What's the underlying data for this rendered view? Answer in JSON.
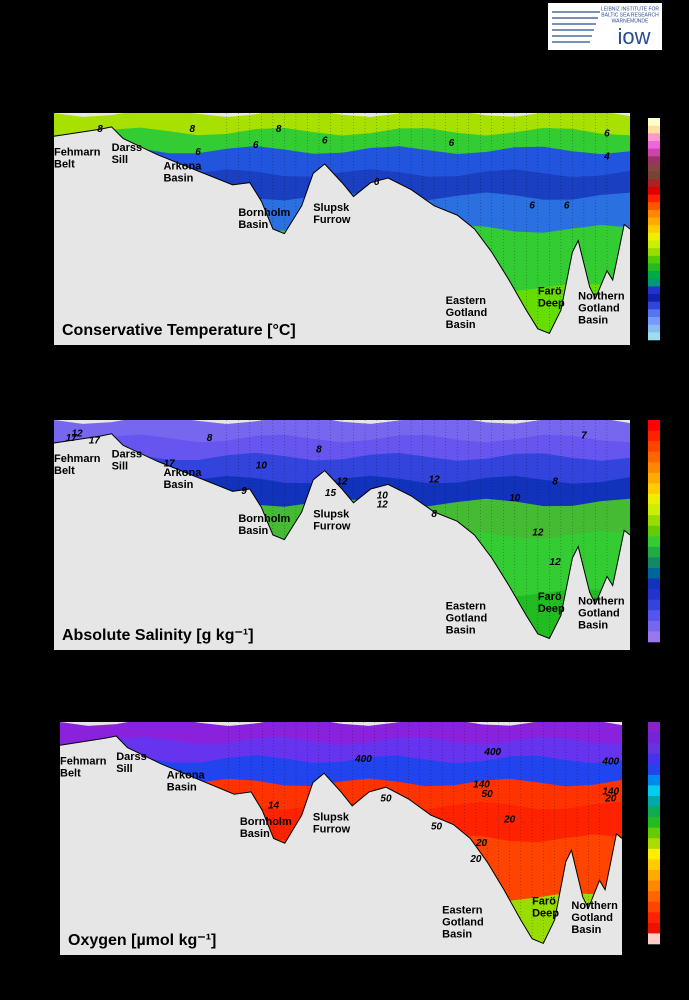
{
  "logo": {
    "lines": [
      "LEIBNIZ INSTITUTE FOR",
      "BALTIC SEA RESEARCH",
      "WARNEMÜNDE"
    ],
    "mark": "iow"
  },
  "chart_data": [
    {
      "type": "section",
      "title": "Conservative Temperature [°C]",
      "basin_labels": [
        [
          "Fehmarn",
          "Belt"
        ],
        [
          "Darss",
          "Sill"
        ],
        [
          "Arkona",
          "Basin"
        ],
        [
          "Bornholm",
          "Basin"
        ],
        [
          "Slupsk",
          "Furrow"
        ],
        [
          "Eastern",
          "Gotland",
          "Basin"
        ],
        [
          "Farö",
          "Deep"
        ],
        [
          "Northern",
          "Gotland",
          "Basin"
        ]
      ],
      "contour_labels": [
        8,
        8,
        8,
        6,
        6,
        6,
        6,
        6,
        4,
        6,
        6,
        6
      ],
      "layer_colors": [
        "#a8e000",
        "#33cc33",
        "#2255dd",
        "#1a3fc0",
        "#2a70e0",
        "#33cc33",
        "#66dd00"
      ],
      "colorbar": [
        "#ffffcc",
        "#ffe0a0",
        "#ff99cc",
        "#ee66dd",
        "#cc44aa",
        "#993366",
        "#884444",
        "#774433",
        "#aa2222",
        "#dd0000",
        "#ff2200",
        "#ff5500",
        "#ff8800",
        "#ffaa00",
        "#ffcc00",
        "#eeee00",
        "#ccee00",
        "#99dd00",
        "#55cc00",
        "#22bb22",
        "#00aa44",
        "#009977",
        "#2233cc",
        "#1122aa",
        "#3344dd",
        "#5577ee",
        "#7799ff",
        "#88bbee",
        "#99ddee"
      ]
    },
    {
      "type": "section",
      "title": "Absolute Salinity [g kg⁻¹]",
      "basin_labels": [
        [
          "Fehmarn",
          "Belt"
        ],
        [
          "Darss",
          "Sill"
        ],
        [
          "Arkona",
          "Basin"
        ],
        [
          "Bornholm",
          "Basin"
        ],
        [
          "Slupsk",
          "Furrow"
        ],
        [
          "Eastern",
          "Gotland",
          "Basin"
        ],
        [
          "Farö",
          "Deep"
        ],
        [
          "Northern",
          "Gotland",
          "Basin"
        ]
      ],
      "contour_labels": [
        12,
        17,
        8,
        17,
        10,
        17,
        9,
        8,
        12,
        15,
        10,
        12,
        8,
        12,
        10,
        8,
        12,
        12,
        7
      ],
      "layer_colors": [
        "#7766ee",
        "#6655ee",
        "#3344dd",
        "#1133bb",
        "#44bb33",
        "#33cc33",
        "#22bb22"
      ],
      "colorbar": [
        "#ff0000",
        "#ff2200",
        "#ff4400",
        "#ff6600",
        "#ff8800",
        "#ffaa00",
        "#ffcc00",
        "#eeee00",
        "#ccee00",
        "#99dd00",
        "#66cc00",
        "#33cc33",
        "#22aa44",
        "#118866",
        "#006699",
        "#1133bb",
        "#2233cc",
        "#3344dd",
        "#5555ee",
        "#7766ee",
        "#9977ee"
      ]
    },
    {
      "type": "section",
      "title": "Oxygen [µmol kg⁻¹]",
      "basin_labels": [
        [
          "Fehmarn",
          "Belt"
        ],
        [
          "Darss",
          "Sill"
        ],
        [
          "Arkona",
          "Basin"
        ],
        [
          "Bornholm",
          "Basin"
        ],
        [
          "Slupsk",
          "Furrow"
        ],
        [
          "Eastern",
          "Gotland",
          "Basin"
        ],
        [
          "Farö",
          "Deep"
        ],
        [
          "Northern",
          "Gotland",
          "Basin"
        ]
      ],
      "contour_labels": [
        400,
        400,
        400,
        50,
        140,
        50,
        20,
        50,
        20,
        20,
        140,
        20,
        14
      ],
      "layer_colors": [
        "#8a22dd",
        "#6633ee",
        "#2244ee",
        "#ff3300",
        "#ff2200",
        "#ff4400",
        "#99dd00"
      ],
      "colorbar": [
        "#8822cc",
        "#7722dd",
        "#6633dd",
        "#4433ee",
        "#2244ee",
        "#0088ee",
        "#00ccee",
        "#00aaaa",
        "#11aa55",
        "#22bb22",
        "#66cc00",
        "#aadd00",
        "#ffee00",
        "#ffcc00",
        "#ffaa00",
        "#ff8800",
        "#ff6600",
        "#ff4400",
        "#ff2200",
        "#ee1100",
        "#ffcccc"
      ]
    }
  ]
}
